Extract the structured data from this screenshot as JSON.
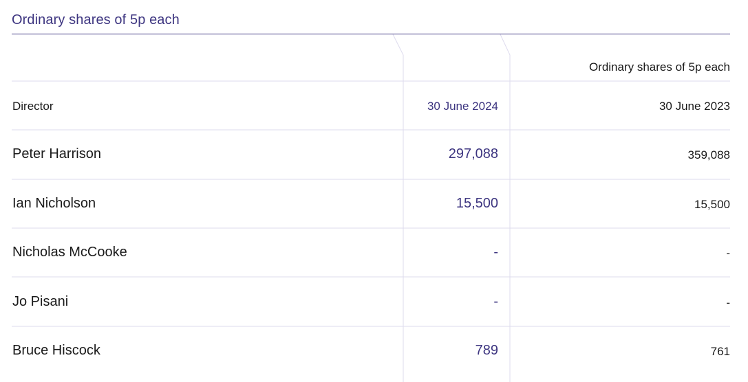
{
  "table": {
    "title": "Ordinary shares of 5p each",
    "group_header": "Ordinary shares of 5p each",
    "columns": {
      "director": "Director",
      "current": "30 June 2024",
      "prior": "30 June 2023"
    },
    "rows": [
      {
        "name": "Peter Harrison",
        "current": "297,088",
        "prior": "359,088"
      },
      {
        "name": "Ian Nicholson",
        "current": "15,500",
        "prior": "15,500"
      },
      {
        "name": "Nicholas McCooke",
        "current": "-",
        "prior": "-"
      },
      {
        "name": "Jo Pisani",
        "current": "-",
        "prior": "-"
      },
      {
        "name": "Bruce Hiscock",
        "current": "789",
        "prior": "761"
      }
    ],
    "colors": {
      "accent": "#3d3580",
      "rule": "#dedbee",
      "text": "#1a1a1a"
    }
  }
}
